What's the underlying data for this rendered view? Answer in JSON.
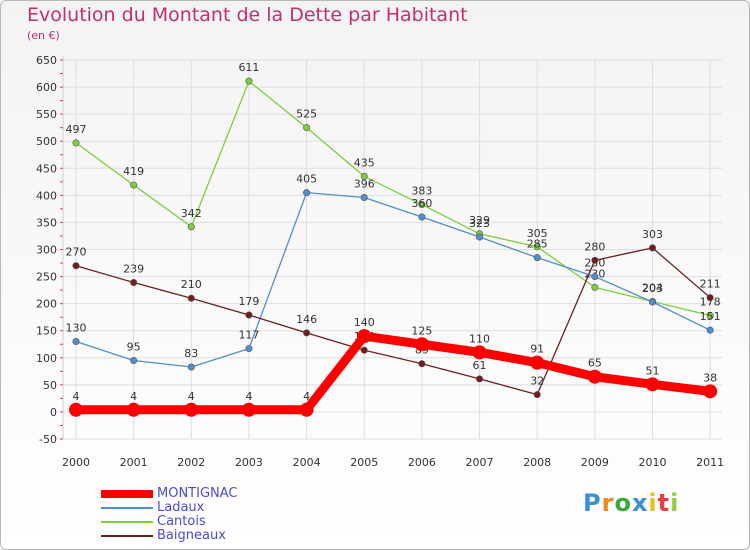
{
  "chart_data": {
    "type": "line",
    "title": "Evolution du Montant de la Dette par Habitant",
    "subtitle": "(en €)",
    "x": [
      "2000",
      "2001",
      "2002",
      "2003",
      "2004",
      "2005",
      "2006",
      "2007",
      "2008",
      "2009",
      "2010",
      "2011"
    ],
    "yticks": [
      -50,
      0,
      50,
      100,
      150,
      200,
      250,
      300,
      350,
      400,
      450,
      500,
      550,
      600,
      650
    ],
    "ylim": [
      -50,
      650
    ],
    "grid": true,
    "series": [
      {
        "name": "Cantois",
        "color": "#7ccf3a",
        "values": [
          497,
          419,
          342,
          611,
          525,
          435,
          383,
          329,
          305,
          230,
          204,
          178
        ],
        "labels": [
          "497",
          "419",
          "342",
          "611",
          "525",
          "435",
          "383",
          "329",
          "305",
          "230",
          "204",
          "178"
        ]
      },
      {
        "name": "Ladaux",
        "color": "#4f8fd0",
        "values": [
          130,
          95,
          83,
          117,
          405,
          396,
          360,
          323,
          285,
          250,
          203,
          151
        ],
        "labels": [
          "130",
          "95",
          "83",
          "117",
          "405",
          "396",
          "360",
          "323",
          "285",
          "250",
          "203",
          "151"
        ]
      },
      {
        "name": "Baigneaux",
        "color": "#6e1e1e",
        "values": [
          270,
          239,
          210,
          179,
          146,
          114,
          89,
          61,
          32,
          280,
          303,
          211
        ],
        "labels": [
          "270",
          "239",
          "210",
          "179",
          "146",
          "114",
          "89",
          "61",
          "32",
          "280",
          "303",
          "211"
        ]
      },
      {
        "name": "MONTIGNAC",
        "color": "#ff0000",
        "values": [
          4,
          4,
          4,
          4,
          4,
          140,
          125,
          110,
          91,
          65,
          51,
          38
        ],
        "labels": [
          "4",
          "4",
          "4",
          "4",
          "4",
          "140",
          "125",
          "110",
          "91",
          "65",
          "51",
          "38"
        ]
      }
    ],
    "legend": [
      "MONTIGNAC",
      "Ladaux",
      "Cantois",
      "Baigneaux"
    ]
  },
  "logo": {
    "letters": [
      {
        "ch": "P",
        "color": "#3a8fd6"
      },
      {
        "ch": "r",
        "color": "#f08a1c"
      },
      {
        "ch": "o",
        "color": "#3aa83a"
      },
      {
        "ch": "x",
        "color": "#3a8fd6"
      },
      {
        "ch": "i",
        "color": "#e8c020"
      },
      {
        "ch": "t",
        "color": "#e84040"
      },
      {
        "ch": "i",
        "color": "#8fd03a"
      }
    ]
  }
}
